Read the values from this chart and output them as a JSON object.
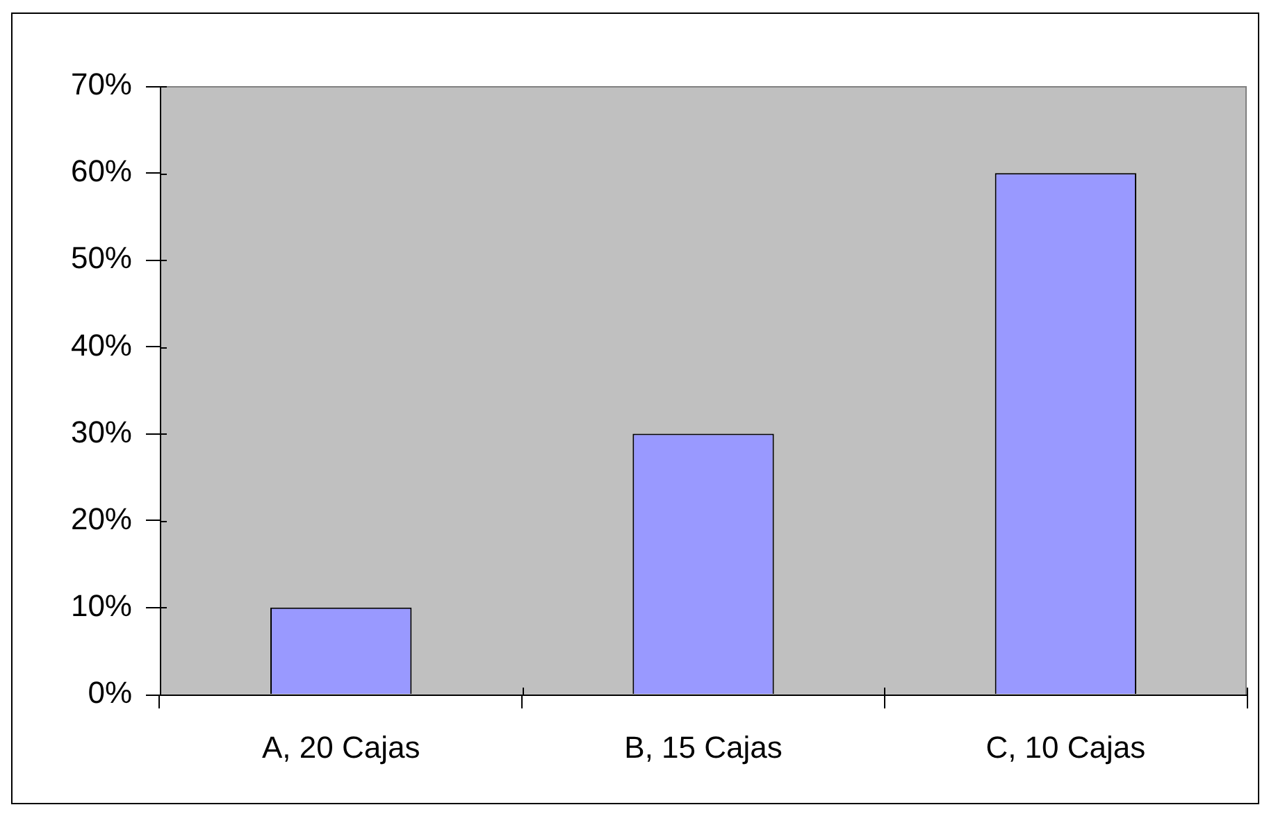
{
  "chart_data": {
    "type": "bar",
    "categories": [
      "A, 20 Cajas",
      "B, 15 Cajas",
      "C, 10 Cajas"
    ],
    "values": [
      10,
      30,
      60
    ],
    "color": "#9999ff",
    "ylim": [
      0,
      70
    ],
    "yticks": [
      {
        "value": 0,
        "label": "0%"
      },
      {
        "value": 10,
        "label": "10%"
      },
      {
        "value": 20,
        "label": "20%"
      },
      {
        "value": 30,
        "label": "30%"
      },
      {
        "value": 40,
        "label": "40%"
      },
      {
        "value": 50,
        "label": "50%"
      },
      {
        "value": 60,
        "label": "60%"
      },
      {
        "value": 70,
        "label": "70%"
      }
    ]
  }
}
